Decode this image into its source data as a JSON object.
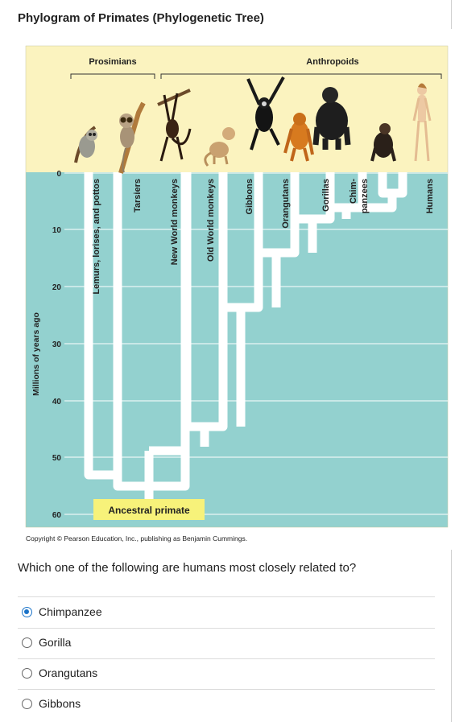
{
  "page": {
    "title": "Phylogram of Primates (Phylogenetic Tree)"
  },
  "figure": {
    "group_prosimians": "Prosimians",
    "group_anthropoids": "Anthropoids",
    "axis_label": "Millions of years ago",
    "ticks": [
      "0",
      "10",
      "20",
      "30",
      "40",
      "50",
      "60"
    ],
    "taxa": {
      "lemurs": "Lemurs, lorises, and pottos",
      "tarsiers": "Tarsiers",
      "new_world": "New World monkeys",
      "old_world": "Old World monkeys",
      "gibbons": "Gibbons",
      "orangutans": "Orangutans",
      "gorillas": "Gorillas",
      "chimp_line1": "Chim-",
      "chimp_line2": "panzees",
      "humans": "Humans"
    },
    "root_label": "Ancestral primate",
    "copyright": "Copyright © Pearson Education, Inc., publishing as Benjamin Cummings.",
    "colors": {
      "sky": "#fbf3bf",
      "water": "#93d1cf",
      "branch": "#ffffff",
      "root_box": "#f7f27a"
    }
  },
  "question": {
    "text": "Which one of the following are humans most closely related to?",
    "selected": "Chimpanzee",
    "options": [
      {
        "label": "Chimpanzee",
        "checked": true
      },
      {
        "label": "Gorilla",
        "checked": false
      },
      {
        "label": "Orangutans",
        "checked": false
      },
      {
        "label": "Gibbons",
        "checked": false
      }
    ]
  }
}
